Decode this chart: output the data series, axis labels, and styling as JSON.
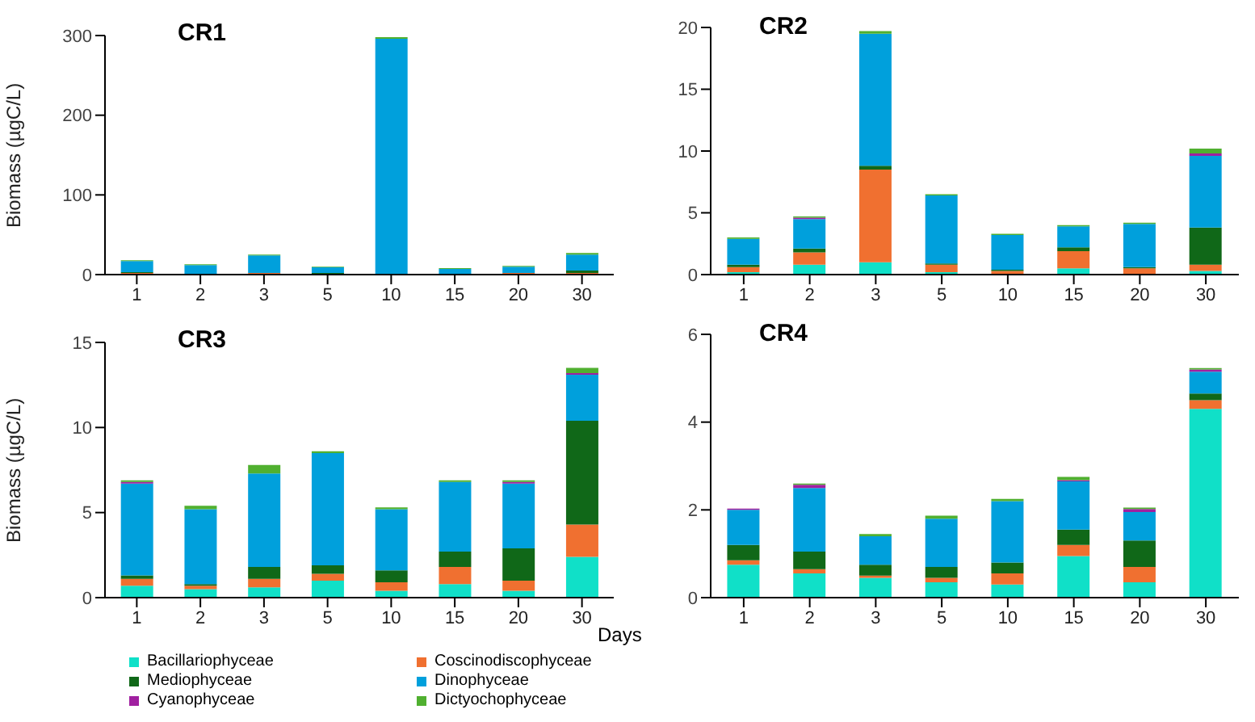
{
  "chart_data": [
    {
      "type": "bar",
      "stacked": true,
      "title": "CR1",
      "ylabel": "Biomass (µgC/L)",
      "categories": [
        "1",
        "2",
        "3",
        "5",
        "10",
        "15",
        "20",
        "30"
      ],
      "ylim": [
        0,
        300
      ],
      "yticks": [
        0,
        100,
        200,
        300
      ],
      "series": [
        {
          "color": "#10e0c8",
          "values": [
            0,
            0,
            0,
            0,
            0,
            0,
            0,
            0
          ]
        },
        {
          "color": "#f07030",
          "values": [
            2,
            1,
            2,
            0,
            null,
            0,
            2,
            2
          ]
        },
        {
          "color": "#106818",
          "values": [
            1,
            0,
            0,
            2,
            0,
            1,
            0,
            3
          ]
        },
        {
          "color": "#00a0dc",
          "values": [
            14,
            11,
            22,
            7,
            296,
            6,
            8,
            20
          ]
        },
        {
          "color": "#a020a0",
          "values": [
            0,
            0,
            0,
            0,
            0,
            0,
            0,
            0
          ]
        },
        {
          "color": "#50b030",
          "values": [
            1,
            1,
            1,
            1,
            2,
            1,
            1,
            2
          ]
        }
      ]
    },
    {
      "type": "bar",
      "stacked": true,
      "title": "CR2",
      "categories": [
        "1",
        "2",
        "3",
        "5",
        "10",
        "15",
        "20",
        "30"
      ],
      "ylim": [
        0,
        20
      ],
      "yticks": [
        0,
        5,
        10,
        15,
        20
      ],
      "series": [
        {
          "color": "#10e0c8",
          "values": [
            0.2,
            0.8,
            1.0,
            0.2,
            null,
            0.5,
            null,
            0.3
          ]
        },
        {
          "color": "#f07030",
          "values": [
            0.4,
            1.0,
            7.5,
            0.6,
            0.3,
            1.4,
            0.5,
            0.5
          ]
        },
        {
          "color": "#106818",
          "values": [
            0.2,
            0.3,
            0.3,
            0.1,
            0.1,
            0.3,
            0.1,
            3.0
          ]
        },
        {
          "color": "#00a0dc",
          "values": [
            2.1,
            2.4,
            10.7,
            5.5,
            2.8,
            1.7,
            3.5,
            5.8
          ]
        },
        {
          "color": "#a020a0",
          "values": [
            0,
            0.1,
            0,
            0,
            0,
            0,
            0,
            0.2
          ]
        },
        {
          "color": "#50b030",
          "values": [
            0.1,
            0.1,
            0.2,
            0.1,
            0.1,
            0.1,
            0.1,
            0.4
          ]
        }
      ]
    },
    {
      "type": "bar",
      "stacked": true,
      "title": "CR3",
      "ylabel": "Biomass (µgC/L)",
      "xlabel": "Days",
      "legend": "bottom",
      "categories": [
        "1",
        "2",
        "3",
        "5",
        "10",
        "15",
        "20",
        "30"
      ],
      "ylim": [
        0,
        15
      ],
      "yticks": [
        0,
        5,
        10,
        15
      ],
      "series": [
        {
          "name": "Bacillariophyceae",
          "color": "#10e0c8",
          "values": [
            0.7,
            0.5,
            0.6,
            1.0,
            0.4,
            0.8,
            0.4,
            2.4
          ]
        },
        {
          "name": "Coscinodiscophyceae",
          "color": "#f07030",
          "values": [
            0.4,
            0.2,
            0.5,
            0.4,
            0.5,
            1.0,
            0.6,
            1.9
          ]
        },
        {
          "name": "Mediophyceae",
          "color": "#106818",
          "values": [
            0.2,
            0.1,
            0.7,
            0.5,
            0.7,
            0.9,
            1.9,
            6.1
          ]
        },
        {
          "name": "Dinophyceae",
          "color": "#00a0dc",
          "values": [
            5.4,
            4.4,
            5.5,
            6.6,
            3.6,
            4.1,
            3.8,
            2.7
          ]
        },
        {
          "name": "Cyanophyceae",
          "color": "#a020a0",
          "values": [
            0.1,
            0,
            0,
            0,
            0,
            0,
            0.1,
            0.1
          ]
        },
        {
          "name": "Dictyochophyceae",
          "color": "#50b030",
          "values": [
            0.1,
            0.2,
            0.5,
            0.1,
            0.1,
            0.1,
            0.1,
            0.3
          ]
        }
      ]
    },
    {
      "type": "bar",
      "stacked": true,
      "title": "CR4",
      "categories": [
        "1",
        "2",
        "3",
        "5",
        "10",
        "15",
        "20",
        "30"
      ],
      "ylim": [
        0,
        6
      ],
      "yticks": [
        0,
        2,
        4,
        6
      ],
      "series": [
        {
          "color": "#10e0c8",
          "values": [
            0.75,
            0.55,
            0.45,
            0.35,
            0.3,
            0.95,
            0.35,
            4.3
          ]
        },
        {
          "color": "#f07030",
          "values": [
            0.1,
            0.1,
            0.05,
            0.1,
            0.25,
            0.25,
            0.35,
            0.2
          ]
        },
        {
          "color": "#106818",
          "values": [
            0.35,
            0.4,
            0.25,
            0.25,
            0.25,
            0.35,
            0.6,
            0.15
          ]
        },
        {
          "color": "#00a0dc",
          "values": [
            0.8,
            1.45,
            0.65,
            1.1,
            1.4,
            1.1,
            0.65,
            0.5
          ]
        },
        {
          "color": "#a020a0",
          "values": [
            0.03,
            0.07,
            0,
            0,
            0,
            0.03,
            0.07,
            0.05
          ]
        },
        {
          "color": "#50b030",
          "values": [
            0,
            0.03,
            0.05,
            0.07,
            0.05,
            0.07,
            0.03,
            0.03
          ]
        }
      ]
    }
  ]
}
